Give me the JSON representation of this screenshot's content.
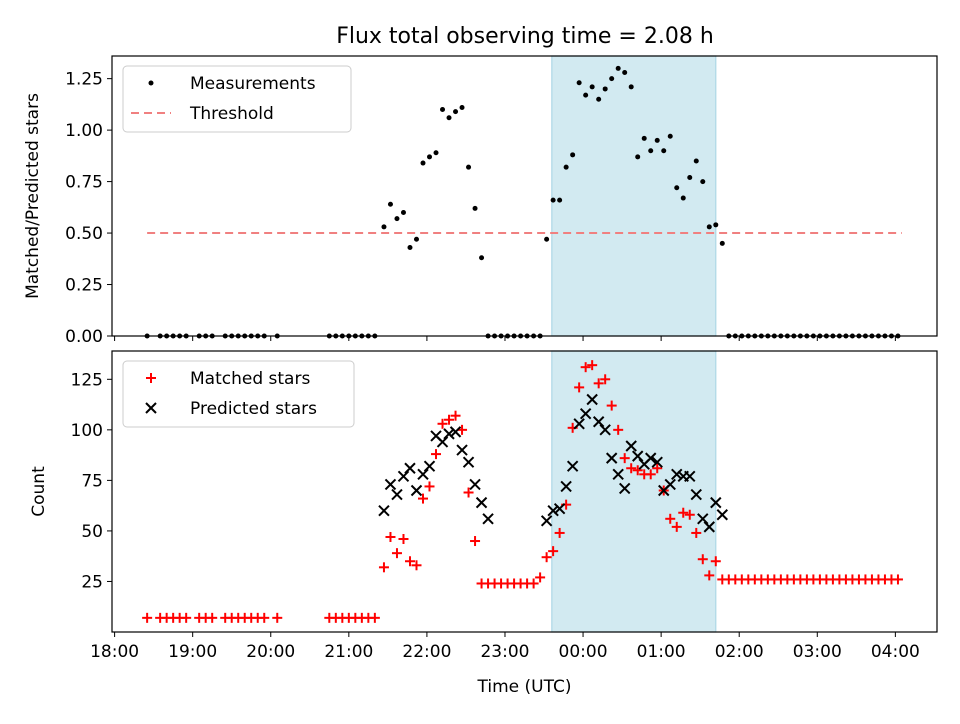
{
  "figure_title": "Flux total observing time = 2.08 h",
  "colors": {
    "measurement": "#000000",
    "threshold": "#f08080",
    "matched": "#ff0000",
    "predicted": "#000000",
    "highlight": "#add8e6"
  },
  "chart_data": [
    {
      "type": "scatter",
      "title": "Flux total observing time = 2.08 h",
      "xlabel": "",
      "ylabel": "Matched/Predicted stars",
      "x_unit": "hours since 18:00 UTC on the axis (time of day)",
      "xlim": [
        "17:58",
        "04:32"
      ],
      "ylim": [
        0,
        1.36
      ],
      "yticks": [
        "0.00",
        "0.25",
        "0.50",
        "0.75",
        "1.00",
        "1.25"
      ],
      "legend": "top-left",
      "highlight_span": [
        "23:36",
        "01:42"
      ],
      "series": [
        {
          "name": "Measurements",
          "kind": "points",
          "x": [
            "18:25",
            "18:35",
            "18:40",
            "18:45",
            "18:50",
            "18:55",
            "19:05",
            "19:10",
            "19:15",
            "19:25",
            "19:30",
            "19:35",
            "19:40",
            "19:45",
            "19:50",
            "19:55",
            "20:05",
            "20:45",
            "20:50",
            "20:55",
            "21:00",
            "21:05",
            "21:10",
            "21:15",
            "21:20",
            "21:27",
            "21:32",
            "21:37",
            "21:42",
            "21:47",
            "21:52",
            "21:57",
            "22:02",
            "22:07",
            "22:12",
            "22:17",
            "22:22",
            "22:27",
            "22:32",
            "22:37",
            "22:42",
            "22:47",
            "22:52",
            "22:57",
            "23:02",
            "23:07",
            "23:12",
            "23:17",
            "23:22",
            "23:27",
            "23:32",
            "23:37",
            "23:42",
            "23:47",
            "23:52",
            "23:57",
            "24:02",
            "24:07",
            "24:12",
            "24:17",
            "24:22",
            "24:27",
            "24:32",
            "24:37",
            "24:42",
            "24:47",
            "24:52",
            "24:57",
            "25:02",
            "25:07",
            "25:12",
            "25:17",
            "25:22",
            "25:27",
            "25:32",
            "25:37",
            "25:42",
            "25:47",
            "25:52",
            "25:57",
            "26:02",
            "26:07",
            "26:12",
            "26:17",
            "26:22",
            "26:27",
            "26:32",
            "26:37",
            "26:42",
            "26:47",
            "26:52",
            "26:57",
            "27:02",
            "27:07",
            "27:12",
            "27:17",
            "27:22",
            "27:27",
            "27:32",
            "27:37",
            "27:42",
            "27:47",
            "27:52",
            "27:57",
            "28:02"
          ],
          "y": [
            0,
            0,
            0,
            0,
            0,
            0,
            0,
            0,
            0,
            0,
            0,
            0,
            0,
            0,
            0,
            0,
            0,
            0,
            0,
            0,
            0,
            0,
            0,
            0,
            0,
            0.53,
            0.64,
            0.57,
            0.6,
            0.43,
            0.47,
            0.84,
            0.87,
            0.89,
            1.1,
            1.06,
            1.09,
            1.11,
            0.82,
            0.62,
            0.38,
            0,
            0,
            0,
            0,
            0,
            0,
            0,
            0,
            0,
            0.47,
            0.66,
            0.66,
            0.82,
            0.88,
            1.23,
            1.17,
            1.21,
            1.15,
            1.2,
            1.25,
            1.3,
            1.28,
            1.21,
            0.87,
            0.96,
            0.9,
            0.95,
            0.9,
            0.97,
            0.72,
            0.67,
            0.77,
            0.85,
            0.75,
            0.53,
            0.54,
            0.45,
            0,
            0,
            0,
            0,
            0,
            0,
            0,
            0,
            0,
            0,
            0,
            0,
            0,
            0,
            0,
            0,
            0,
            0,
            0,
            0,
            0,
            0,
            0,
            0,
            0,
            0,
            0
          ]
        },
        {
          "name": "Threshold",
          "kind": "dashed-line",
          "x": [
            "18:25",
            "28:05"
          ],
          "y": [
            0.5,
            0.5
          ]
        }
      ]
    },
    {
      "type": "scatter",
      "xlabel": "Time (UTC)",
      "ylabel": "Count",
      "xlim": [
        "17:58",
        "04:32"
      ],
      "ylim": [
        0,
        139
      ],
      "xticks": [
        "18:00",
        "19:00",
        "20:00",
        "21:00",
        "22:00",
        "23:00",
        "00:00",
        "01:00",
        "02:00",
        "03:00",
        "04:00"
      ],
      "yticks": [
        "25",
        "50",
        "75",
        "100",
        "125"
      ],
      "legend": "top-left",
      "highlight_span": [
        "23:36",
        "01:42"
      ],
      "series": [
        {
          "name": "Matched stars",
          "marker": "+",
          "x": [
            "18:25",
            "18:35",
            "18:40",
            "18:45",
            "18:50",
            "18:55",
            "19:05",
            "19:10",
            "19:15",
            "19:25",
            "19:30",
            "19:35",
            "19:40",
            "19:45",
            "19:50",
            "19:55",
            "20:05",
            "20:45",
            "20:50",
            "20:55",
            "21:00",
            "21:05",
            "21:10",
            "21:15",
            "21:20",
            "21:27",
            "21:32",
            "21:37",
            "21:42",
            "21:47",
            "21:52",
            "21:57",
            "22:02",
            "22:07",
            "22:12",
            "22:17",
            "22:22",
            "22:27",
            "22:32",
            "22:37",
            "22:42",
            "22:47",
            "22:52",
            "22:57",
            "23:02",
            "23:07",
            "23:12",
            "23:17",
            "23:22",
            "23:27",
            "23:32",
            "23:37",
            "23:42",
            "23:47",
            "23:52",
            "23:57",
            "24:02",
            "24:07",
            "24:12",
            "24:17",
            "24:22",
            "24:27",
            "24:32",
            "24:37",
            "24:42",
            "24:47",
            "24:52",
            "24:57",
            "25:02",
            "25:07",
            "25:12",
            "25:17",
            "25:22",
            "25:27",
            "25:32",
            "25:37",
            "25:42",
            "25:47",
            "25:52",
            "25:57",
            "26:02",
            "26:07",
            "26:12",
            "26:17",
            "26:22",
            "26:27",
            "26:32",
            "26:37",
            "26:42",
            "26:47",
            "26:52",
            "26:57",
            "27:02",
            "27:07",
            "27:12",
            "27:17",
            "27:22",
            "27:27",
            "27:32",
            "27:37",
            "27:42",
            "27:47",
            "27:52",
            "27:57",
            "28:02"
          ],
          "y": [
            7,
            7,
            7,
            7,
            7,
            7,
            7,
            7,
            7,
            7,
            7,
            7,
            7,
            7,
            7,
            7,
            7,
            7,
            7,
            7,
            7,
            7,
            7,
            7,
            7,
            32,
            47,
            39,
            46,
            35,
            33,
            66,
            72,
            88,
            103,
            105,
            107,
            100,
            69,
            45,
            24,
            24,
            24,
            24,
            24,
            24,
            24,
            24,
            24,
            27,
            37,
            40,
            49,
            63,
            101,
            121,
            131,
            132,
            123,
            125,
            112,
            100,
            86,
            81,
            80,
            78,
            78,
            81,
            70,
            56,
            52,
            59,
            58,
            49,
            36,
            28,
            35,
            26,
            26,
            26,
            26,
            26,
            26,
            26,
            26,
            26,
            26,
            26,
            26,
            26,
            26,
            26,
            26,
            26,
            26,
            26,
            26,
            26,
            26,
            26,
            26,
            26,
            26,
            26,
            26
          ]
        },
        {
          "name": "Predicted stars",
          "marker": "x",
          "x": [
            "21:27",
            "21:32",
            "21:37",
            "21:42",
            "21:47",
            "21:52",
            "21:57",
            "22:02",
            "22:07",
            "22:12",
            "22:17",
            "22:22",
            "22:27",
            "22:32",
            "22:37",
            "22:42",
            "22:47",
            "23:32",
            "23:37",
            "23:42",
            "23:47",
            "23:52",
            "23:57",
            "24:02",
            "24:07",
            "24:12",
            "24:17",
            "24:22",
            "24:27",
            "24:32",
            "24:37",
            "24:42",
            "24:47",
            "24:52",
            "24:57",
            "25:02",
            "25:07",
            "25:12",
            "25:17",
            "25:22",
            "25:27",
            "25:32",
            "25:37",
            "25:42",
            "25:47"
          ],
          "y": [
            60,
            73,
            68,
            77,
            81,
            70,
            78,
            82,
            97,
            94,
            98,
            99,
            90,
            84,
            73,
            64,
            56,
            55,
            60,
            61,
            72,
            82,
            103,
            108,
            115,
            104,
            100,
            86,
            78,
            71,
            92,
            87,
            83,
            86,
            84,
            70,
            73,
            78,
            77,
            77,
            68,
            56,
            52,
            64,
            58
          ]
        }
      ]
    }
  ]
}
